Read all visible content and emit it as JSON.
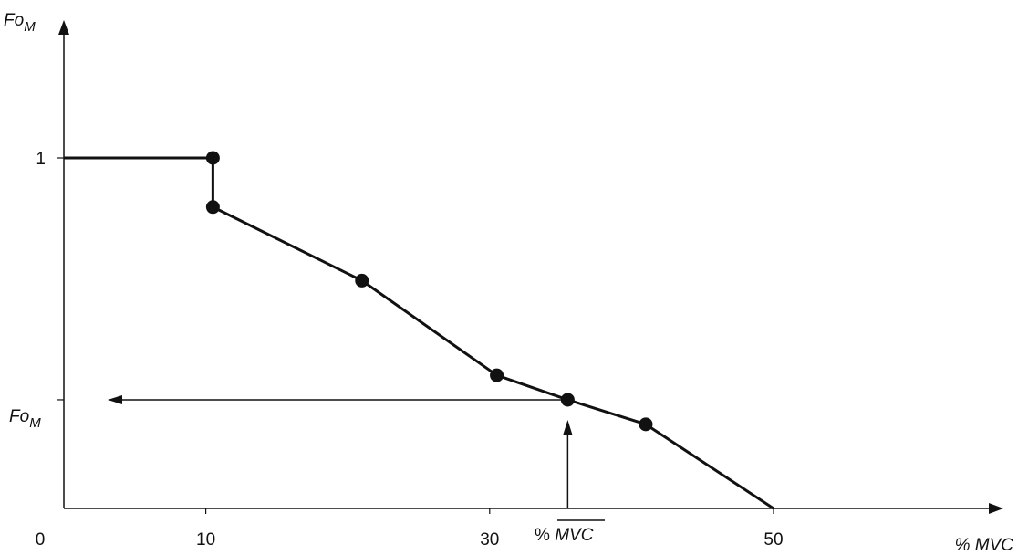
{
  "chart_data": {
    "type": "line",
    "x_axis_label": "% MVC",
    "y_axis_label_base": "Fo",
    "y_axis_label_sub": "M",
    "x_ticks": [
      {
        "value": 0,
        "label": "0"
      },
      {
        "value": 10,
        "label": "10"
      },
      {
        "value": 30,
        "label": "30"
      },
      {
        "value": 50,
        "label": "50"
      }
    ],
    "y_ticks": [
      {
        "value": 1,
        "label": "1"
      }
    ],
    "xlim": [
      0,
      62
    ],
    "ylim": [
      0,
      1.3
    ],
    "series": [
      {
        "points": [
          {
            "x": 0,
            "y": 1.0
          },
          {
            "x": 10.5,
            "y": 1.0
          },
          {
            "x": 10.5,
            "y": 0.86
          },
          {
            "x": 21,
            "y": 0.65
          },
          {
            "x": 30.5,
            "y": 0.38
          },
          {
            "x": 35.5,
            "y": 0.31
          },
          {
            "x": 41,
            "y": 0.24
          },
          {
            "x": 50,
            "y": 0.0
          }
        ],
        "markers": [
          {
            "x": 10.5,
            "y": 1.0
          },
          {
            "x": 10.5,
            "y": 0.86
          },
          {
            "x": 21,
            "y": 0.65
          },
          {
            "x": 30.5,
            "y": 0.38
          },
          {
            "x": 35.5,
            "y": 0.31
          },
          {
            "x": 41,
            "y": 0.24
          }
        ]
      }
    ],
    "annotation": {
      "x_value": 35.5,
      "y_value": 0.31,
      "x_label_prefix": "% ",
      "x_label_main": "MVC",
      "y_label_base": "Fo",
      "y_label_sub": "M"
    },
    "colors": {
      "line": "#111111",
      "background": "#ffffff"
    }
  }
}
